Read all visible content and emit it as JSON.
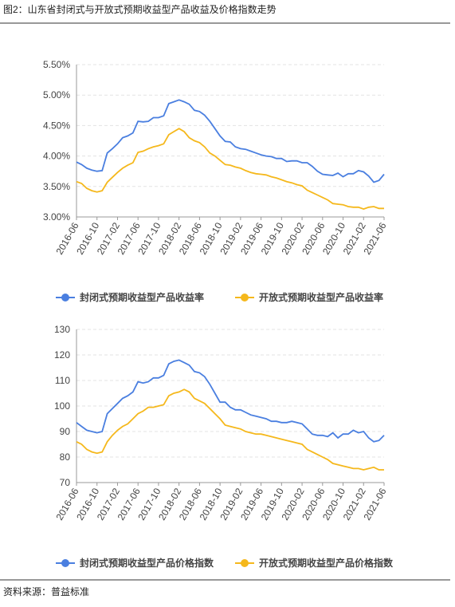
{
  "figure_title": "图2：山东省封闭式与开放式预期收益型产品收益及价格指数走势",
  "source": "资料来源：普益标准",
  "chart_data": [
    {
      "type": "line",
      "categories": [
        "2016-06",
        null,
        null,
        null,
        "2016-10",
        null,
        null,
        null,
        "2017-02",
        null,
        null,
        null,
        "2017-06",
        null,
        null,
        null,
        "2017-10",
        null,
        null,
        null,
        "2018-02",
        null,
        null,
        null,
        "2018-06",
        null,
        null,
        null,
        "2018-10",
        null,
        null,
        null,
        "2019-02",
        null,
        null,
        null,
        "2019-06",
        null,
        null,
        null,
        "2019-10",
        null,
        null,
        null,
        "2020-02",
        null,
        null,
        null,
        "2020-06",
        null,
        null,
        null,
        "2020-10",
        null,
        null,
        null,
        "2021-02",
        null,
        null,
        null,
        "2021-06"
      ],
      "series": [
        {
          "name": "封闭式预期收益型产品收益率",
          "color": "#4a7fe0",
          "values": [
            3.9,
            3.86,
            3.8,
            3.77,
            3.75,
            3.76,
            4.05,
            4.12,
            4.2,
            4.3,
            4.33,
            4.38,
            4.57,
            4.56,
            4.57,
            4.63,
            4.63,
            4.66,
            4.86,
            4.89,
            4.92,
            4.89,
            4.85,
            4.75,
            4.73,
            4.67,
            4.57,
            4.45,
            4.33,
            4.24,
            4.23,
            4.15,
            4.12,
            4.11,
            4.08,
            4.05,
            4.02,
            4.0,
            3.99,
            3.96,
            3.96,
            3.91,
            3.92,
            3.92,
            3.89,
            3.89,
            3.83,
            3.75,
            3.7,
            3.69,
            3.68,
            3.72,
            3.66,
            3.71,
            3.71,
            3.76,
            3.74,
            3.67,
            3.57,
            3.6,
            3.7
          ]
        },
        {
          "name": "开放式预期收益型产品收益率",
          "color": "#f5b81c",
          "values": [
            3.58,
            3.55,
            3.47,
            3.43,
            3.41,
            3.43,
            3.57,
            3.65,
            3.73,
            3.8,
            3.85,
            3.89,
            4.06,
            4.08,
            4.12,
            4.15,
            4.17,
            4.2,
            4.35,
            4.4,
            4.45,
            4.4,
            4.3,
            4.25,
            4.22,
            4.15,
            4.05,
            4.0,
            3.93,
            3.86,
            3.85,
            3.82,
            3.8,
            3.76,
            3.73,
            3.71,
            3.7,
            3.69,
            3.66,
            3.64,
            3.61,
            3.58,
            3.56,
            3.53,
            3.51,
            3.44,
            3.4,
            3.36,
            3.32,
            3.28,
            3.22,
            3.21,
            3.2,
            3.17,
            3.16,
            3.16,
            3.13,
            3.16,
            3.17,
            3.14,
            3.14
          ]
        }
      ],
      "ylim": [
        3,
        5.5
      ],
      "yticks": [
        {
          "value": 3,
          "label": "3.00%"
        },
        {
          "value": 3.5,
          "label": "3.50%"
        },
        {
          "value": 4,
          "label": "4.00%"
        },
        {
          "value": 4.5,
          "label": "4.50%"
        },
        {
          "value": 5,
          "label": "5.00%"
        },
        {
          "value": 5.5,
          "label": "5.50%"
        }
      ],
      "grid": true
    },
    {
      "type": "line",
      "categories": [
        "2016-06",
        null,
        null,
        null,
        "2016-10",
        null,
        null,
        null,
        "2017-02",
        null,
        null,
        null,
        "2017-06",
        null,
        null,
        null,
        "2017-10",
        null,
        null,
        null,
        "2018-02",
        null,
        null,
        null,
        "2018-06",
        null,
        null,
        null,
        "2018-10",
        null,
        null,
        null,
        "2019-02",
        null,
        null,
        null,
        "2019-06",
        null,
        null,
        null,
        "2019-10",
        null,
        null,
        null,
        "2020-02",
        null,
        null,
        null,
        "2020-06",
        null,
        null,
        null,
        "2020-10",
        null,
        null,
        null,
        "2021-02",
        null,
        null,
        null,
        "2021-06"
      ],
      "series": [
        {
          "name": "封闭式预期收益型产品价格指数",
          "color": "#4a7fe0",
          "values": [
            93.5,
            92,
            90.5,
            90,
            89.5,
            90,
            97,
            99,
            101,
            103,
            104,
            105.5,
            109.5,
            109,
            109.5,
            111,
            111,
            112,
            116.5,
            117.5,
            118,
            117,
            116,
            113.5,
            113,
            111.5,
            108.5,
            105,
            101.5,
            101.5,
            99.5,
            98.5,
            98.5,
            97.5,
            96.5,
            96,
            95.5,
            95,
            94,
            94,
            93.5,
            93.5,
            94,
            93.5,
            93,
            91,
            89,
            88.5,
            88.5,
            88,
            89.5,
            87.5,
            89,
            89,
            90.5,
            89.5,
            90,
            87.5,
            86,
            86.5,
            88.5
          ]
        },
        {
          "name": "开放式预期收益型产品价格指数",
          "color": "#f5b81c",
          "values": [
            86,
            85,
            83,
            82,
            81.5,
            82,
            86,
            88.5,
            90.5,
            92,
            93,
            95,
            97,
            98,
            99.5,
            99.5,
            100,
            100.5,
            104,
            105,
            105.5,
            106.5,
            105.5,
            103,
            102,
            101,
            99,
            97,
            95,
            92.5,
            92,
            91.5,
            91,
            90,
            89.5,
            89,
            89,
            88.5,
            88,
            87.5,
            87,
            86.5,
            86,
            85.5,
            85,
            83,
            82,
            81,
            80,
            79,
            77.5,
            77,
            76.5,
            76,
            75.5,
            75.5,
            75,
            75.5,
            76,
            75,
            75
          ]
        }
      ],
      "ylim": [
        70,
        130
      ],
      "yticks": [
        70,
        80,
        90,
        100,
        110,
        120,
        130
      ],
      "grid": true
    }
  ]
}
